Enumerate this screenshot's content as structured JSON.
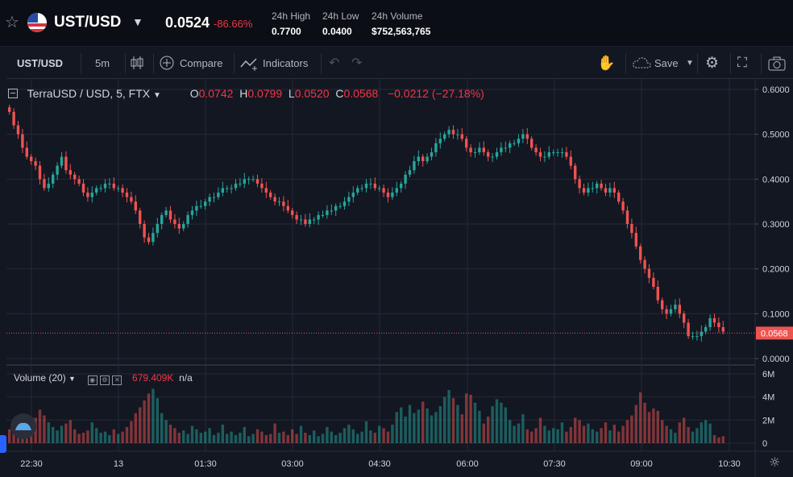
{
  "header": {
    "pair": "UST/USD",
    "price": "0.0524",
    "change_pct": "-86.66%",
    "stats": [
      {
        "label": "24h High",
        "value": "0.7700"
      },
      {
        "label": "24h Low",
        "value": "0.0400"
      },
      {
        "label": "24h Volume",
        "value": "$752,563,765"
      }
    ]
  },
  "toolbar": {
    "symbol": "UST/USD",
    "interval": "5m",
    "compare": "Compare",
    "indicators": "Indicators",
    "save": "Save"
  },
  "legend": {
    "title": "TerraUSD / USD, 5, FTX",
    "o_label": "O",
    "o": "0.0742",
    "h_label": "H",
    "h": "0.0799",
    "l_label": "L",
    "l": "0.0520",
    "c_label": "C",
    "c": "0.0568",
    "change": "−0.0212 (−27.18%)"
  },
  "volume_legend": {
    "label": "Volume (20)",
    "value": "679.409K",
    "na": "n/a"
  },
  "colors": {
    "up": "#26a69a",
    "down": "#ef5350",
    "background": "#131722",
    "grid": "#262a36"
  },
  "chart_data": {
    "type": "candlestick",
    "x_ticks": [
      "22:30",
      "13",
      "01:30",
      "03:00",
      "04:30",
      "06:00",
      "07:30",
      "09:00",
      "10:30"
    ],
    "price_axis_ticks": [
      "0.6000",
      "0.5000",
      "0.4000",
      "0.3000",
      "0.2000",
      "0.1000",
      "0.0000"
    ],
    "price_ylim": [
      0,
      0.6
    ],
    "last_price_label": "0.0568",
    "volume_axis_ticks": [
      "6M",
      "4M",
      "2M",
      "0"
    ],
    "volume_ylim": [
      0,
      6000000
    ],
    "series": [
      {
        "name": "price",
        "close": [
          0.55,
          0.52,
          0.5,
          0.47,
          0.45,
          0.44,
          0.43,
          0.4,
          0.38,
          0.39,
          0.41,
          0.43,
          0.45,
          0.42,
          0.41,
          0.4,
          0.39,
          0.37,
          0.36,
          0.37,
          0.38,
          0.38,
          0.39,
          0.39,
          0.38,
          0.38,
          0.37,
          0.36,
          0.35,
          0.33,
          0.3,
          0.27,
          0.26,
          0.28,
          0.3,
          0.32,
          0.33,
          0.31,
          0.3,
          0.29,
          0.3,
          0.32,
          0.33,
          0.34,
          0.34,
          0.35,
          0.36,
          0.36,
          0.37,
          0.38,
          0.38,
          0.38,
          0.39,
          0.39,
          0.4,
          0.4,
          0.4,
          0.39,
          0.38,
          0.37,
          0.36,
          0.35,
          0.35,
          0.34,
          0.33,
          0.32,
          0.31,
          0.31,
          0.3,
          0.31,
          0.31,
          0.32,
          0.32,
          0.33,
          0.33,
          0.34,
          0.34,
          0.35,
          0.36,
          0.37,
          0.38,
          0.38,
          0.39,
          0.39,
          0.38,
          0.38,
          0.37,
          0.36,
          0.37,
          0.38,
          0.39,
          0.41,
          0.42,
          0.44,
          0.45,
          0.44,
          0.45,
          0.46,
          0.48,
          0.49,
          0.5,
          0.51,
          0.5,
          0.5,
          0.49,
          0.47,
          0.46,
          0.46,
          0.47,
          0.46,
          0.45,
          0.45,
          0.46,
          0.47,
          0.47,
          0.48,
          0.48,
          0.49,
          0.5,
          0.49,
          0.47,
          0.46,
          0.45,
          0.45,
          0.46,
          0.46,
          0.46,
          0.46,
          0.45,
          0.43,
          0.4,
          0.38,
          0.37,
          0.38,
          0.38,
          0.39,
          0.38,
          0.37,
          0.38,
          0.37,
          0.35,
          0.33,
          0.3,
          0.28,
          0.25,
          0.22,
          0.2,
          0.18,
          0.16,
          0.13,
          0.11,
          0.1,
          0.11,
          0.12,
          0.1,
          0.08,
          0.05,
          0.05,
          0.05,
          0.06,
          0.07,
          0.09,
          0.08,
          0.07,
          0.06
        ]
      },
      {
        "name": "volume",
        "values": [
          1200000,
          1500000,
          1000000,
          900000,
          1300000,
          1600000,
          2200000,
          2900000,
          2400000,
          1800000,
          1400000,
          1100000,
          1500000,
          1700000,
          2000000,
          1200000,
          800000,
          900000,
          1100000,
          1800000,
          1300000,
          900000,
          1000000,
          700000,
          1200000,
          800000,
          1000000,
          1400000,
          1900000,
          2600000,
          3100000,
          3700000,
          4300000,
          4700000,
          3900000,
          2600000,
          2000000,
          1600000,
          1300000,
          900000,
          1100000,
          800000,
          1500000,
          1200000,
          900000,
          1000000,
          1300000,
          700000,
          900000,
          1600000,
          800000,
          1000000,
          700000,
          900000,
          1400000,
          600000,
          800000,
          1200000,
          1000000,
          700000,
          800000,
          1700000,
          900000,
          1000000,
          700000,
          1200000,
          800000,
          1500000,
          900000,
          700000,
          1100000,
          600000,
          800000,
          1400000,
          1000000,
          700000,
          900000,
          1300000,
          1600000,
          1200000,
          800000,
          1000000,
          1900000,
          1100000,
          900000,
          1500000,
          1300000,
          1000000,
          1600000,
          2700000,
          3100000,
          2300000,
          3300000,
          2600000,
          2900000,
          3600000,
          3000000,
          2400000,
          2700000,
          3200000,
          4000000,
          4600000,
          3900000,
          3300000,
          2500000,
          4300000,
          4200000,
          3500000,
          2800000,
          1700000,
          2300000,
          3200000,
          3800000,
          3500000,
          3100000,
          2000000,
          1500000,
          1700000,
          2500000,
          1200000,
          1000000,
          1300000,
          2200000,
          1500000,
          1100000,
          1300000,
          1200000,
          1800000,
          1000000,
          1400000,
          2200000,
          2000000,
          1500000,
          1700000,
          1200000,
          1000000,
          1300000,
          1800000,
          1100000,
          1600000,
          1000000,
          1500000,
          2000000,
          2400000,
          3300000,
          4400000,
          3500000,
          2700000,
          3000000,
          2800000,
          2000000,
          1500000,
          1200000,
          900000,
          1800000,
          2200000,
          1400000,
          1000000,
          1300000,
          1800000,
          2000000,
          1700000,
          700000,
          500000,
          600000
        ]
      }
    ]
  }
}
